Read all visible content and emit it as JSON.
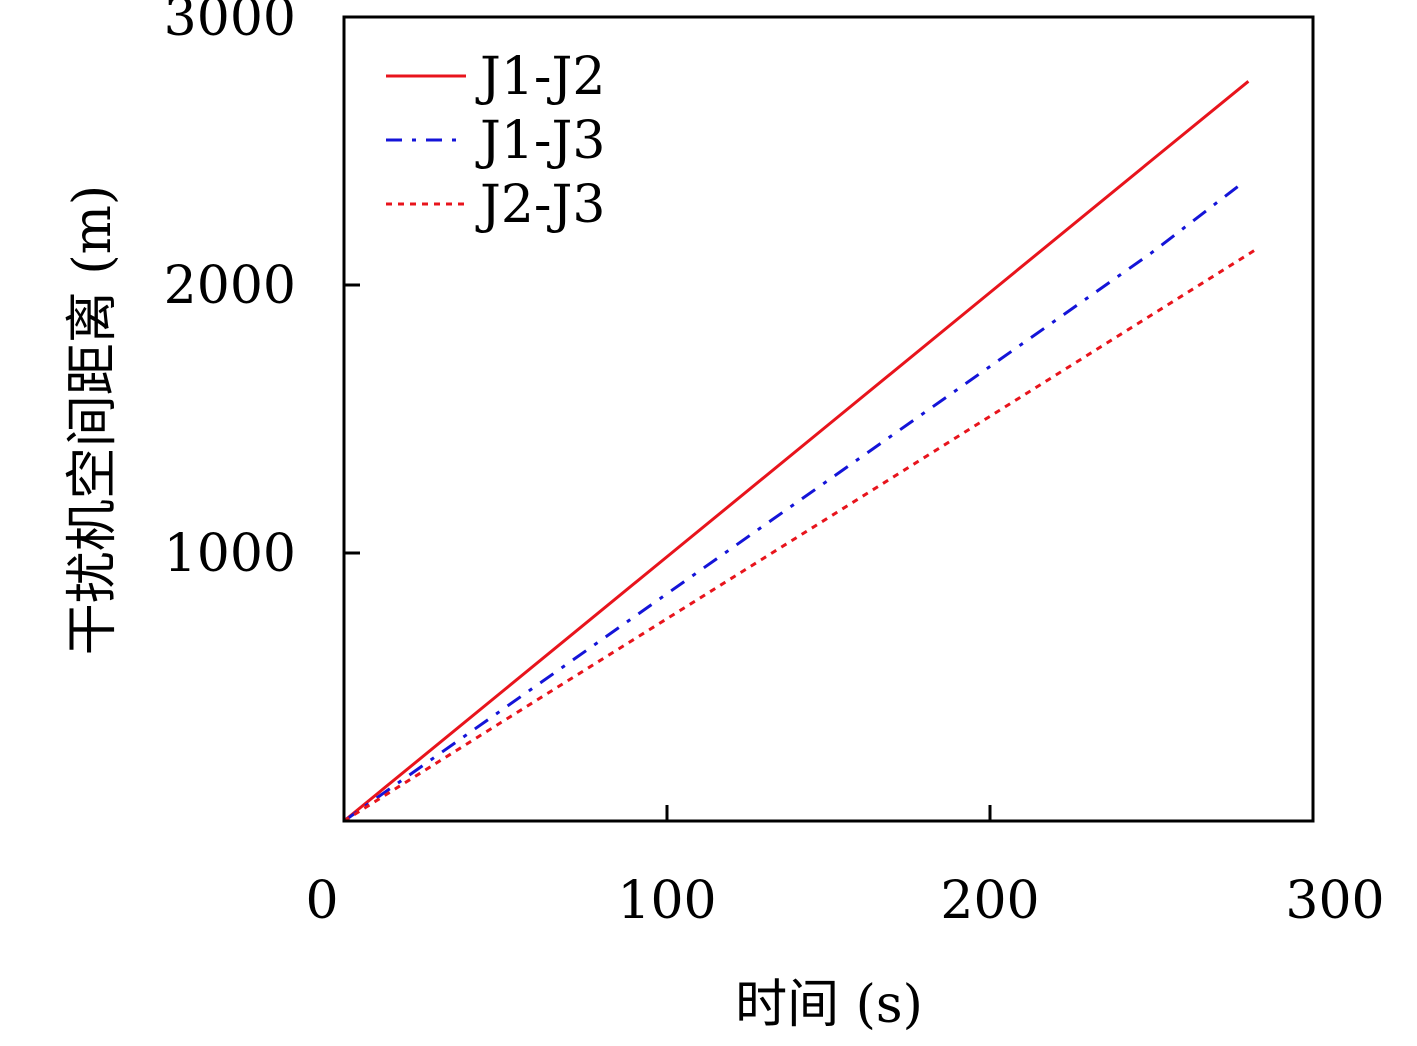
{
  "chart_data": {
    "type": "line",
    "title": "",
    "xlabel": "时间 (s)",
    "ylabel": "干扰机空间距离 (m)",
    "xlim": [
      0,
      300
    ],
    "ylim": [
      0,
      3000
    ],
    "xticks": [
      0,
      100,
      200,
      300
    ],
    "xtick_labels": [
      "0",
      "100",
      "200",
      "300"
    ],
    "yticks": [
      1000,
      2000,
      3000
    ],
    "ytick_labels": [
      "1000",
      "2000",
      "3000"
    ],
    "grid": false,
    "legend_position": "top-left",
    "series": [
      {
        "name": "J1-J2",
        "color": "#e8141c",
        "line_style": "solid",
        "x": [
          0,
          50,
          100,
          150,
          200,
          250,
          280
        ],
        "y": [
          0,
          493,
          986,
          1479,
          1972,
          2465,
          2760
        ]
      },
      {
        "name": "J1-J3",
        "color": "#1414d8",
        "line_style": "dashdot",
        "x": [
          0,
          50,
          100,
          150,
          200,
          250,
          277
        ],
        "y": [
          0,
          424,
          848,
          1272,
          1696,
          2120,
          2370
        ]
      },
      {
        "name": "J2-J3",
        "color": "#e8141c",
        "line_style": "dotted",
        "x": [
          0,
          50,
          100,
          150,
          200,
          250,
          282
        ],
        "y": [
          0,
          378,
          755,
          1132,
          1510,
          1888,
          2130
        ]
      }
    ]
  }
}
